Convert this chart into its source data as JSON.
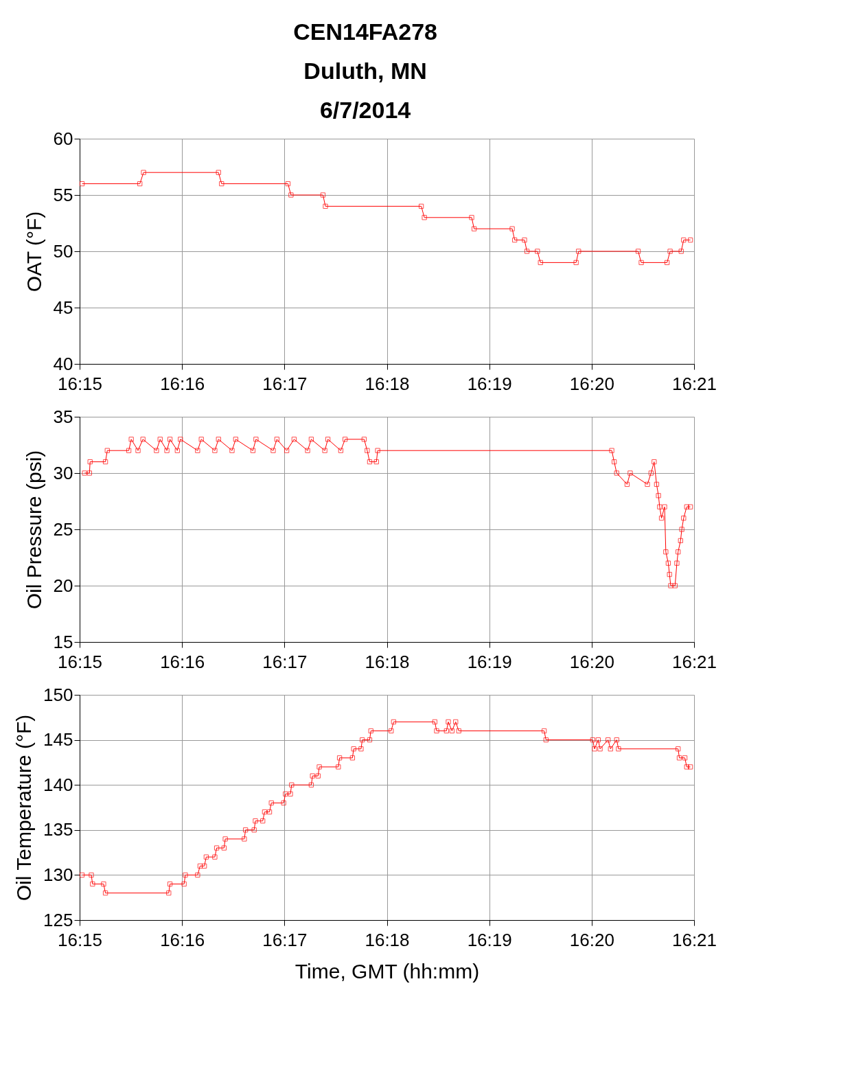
{
  "chart_data": [
    {
      "type": "line",
      "title": "CEN14FA278\nDuluth, MN\n6/7/2014",
      "ylabel": "OAT (°F)",
      "xlim": [
        16.25,
        16.35
      ],
      "xticks": [
        {
          "value": 16.25,
          "label": "16:15"
        },
        {
          "value": 16.266667,
          "label": "16:16"
        },
        {
          "value": 16.283333,
          "label": "16:17"
        },
        {
          "value": 16.3,
          "label": "16:18"
        },
        {
          "value": 16.316667,
          "label": "16:19"
        },
        {
          "value": 16.333333,
          "label": "16:20"
        },
        {
          "value": 16.35,
          "label": "16:21"
        }
      ],
      "ylim": [
        40,
        60
      ],
      "yticks": [
        40,
        45,
        50,
        55,
        60
      ],
      "grid": true,
      "marker": "square",
      "line_style": "solid",
      "series": [
        {
          "color": "#ff0000",
          "x": [
            16.2504,
            16.2598,
            16.2604,
            16.2726,
            16.2731,
            16.2839,
            16.2844,
            16.2896,
            16.29,
            16.3056,
            16.3061,
            16.3138,
            16.3142,
            16.3204,
            16.3208,
            16.3224,
            16.3228,
            16.3245,
            16.325,
            16.3308,
            16.3312,
            16.3409,
            16.3414,
            16.3456,
            16.3461,
            16.3479,
            16.3483,
            16.3494
          ],
          "values": [
            56,
            56,
            57,
            57,
            56,
            56,
            55,
            55,
            54,
            54,
            53,
            53,
            52,
            52,
            51,
            51,
            50,
            50,
            49,
            49,
            50,
            50,
            49,
            49,
            50,
            50,
            51,
            51
          ]
        }
      ]
    },
    {
      "type": "line",
      "ylabel": "Oil Pressure (psi)",
      "xlim": [
        16.25,
        16.35
      ],
      "xticks": [
        {
          "value": 16.25,
          "label": "16:15"
        },
        {
          "value": 16.266667,
          "label": "16:16"
        },
        {
          "value": 16.283333,
          "label": "16:17"
        },
        {
          "value": 16.3,
          "label": "16:18"
        },
        {
          "value": 16.316667,
          "label": "16:19"
        },
        {
          "value": 16.333333,
          "label": "16:20"
        },
        {
          "value": 16.35,
          "label": "16:21"
        }
      ],
      "ylim": [
        15,
        35
      ],
      "yticks": [
        15,
        20,
        25,
        30,
        35
      ],
      "grid": true,
      "marker": "square",
      "line_style": "solid",
      "series": [
        {
          "color": "#ff0000",
          "x": [
            16.2508,
            16.2516,
            16.2517,
            16.2542,
            16.2545,
            16.258,
            16.2584,
            16.2595,
            16.2603,
            16.2625,
            16.2631,
            16.2642,
            16.2647,
            16.2659,
            16.2664,
            16.2692,
            16.2698,
            16.272,
            16.2726,
            16.2748,
            16.2754,
            16.2782,
            16.2787,
            16.2815,
            16.2821,
            16.2837,
            16.2849,
            16.2871,
            16.2877,
            16.2899,
            16.2904,
            16.2925,
            16.2932,
            16.2963,
            16.2968,
            16.2972,
            16.2983,
            16.2985,
            16.3366,
            16.337,
            16.3374,
            16.3391,
            16.3396,
            16.3424,
            16.343,
            16.3435,
            16.3439,
            16.3442,
            16.3444,
            16.3447,
            16.3452,
            16.3454,
            16.3458,
            16.346,
            16.3462,
            16.3469,
            16.3472,
            16.3474,
            16.3478,
            16.348,
            16.3483,
            16.3488,
            16.3494
          ],
          "values": [
            30,
            30,
            31,
            31,
            32,
            32,
            33,
            32,
            33,
            32,
            33,
            32,
            33,
            32,
            33,
            32,
            33,
            32,
            33,
            32,
            33,
            32,
            33,
            32,
            33,
            32,
            33,
            32,
            33,
            32,
            33,
            32,
            33,
            33,
            32,
            31,
            31,
            32,
            32,
            31,
            30,
            29,
            30,
            29,
            30,
            31,
            29,
            28,
            27,
            26,
            27,
            23,
            22,
            21,
            20,
            20,
            22,
            23,
            24,
            25,
            26,
            27,
            27
          ]
        }
      ]
    },
    {
      "type": "line",
      "ylabel": "Oil Temperature (°F)",
      "xlabel": "Time, GMT (hh:mm)",
      "xlim": [
        16.25,
        16.35
      ],
      "xticks": [
        {
          "value": 16.25,
          "label": "16:15"
        },
        {
          "value": 16.266667,
          "label": "16:16"
        },
        {
          "value": 16.283333,
          "label": "16:17"
        },
        {
          "value": 16.3,
          "label": "16:18"
        },
        {
          "value": 16.316667,
          "label": "16:19"
        },
        {
          "value": 16.333333,
          "label": "16:20"
        },
        {
          "value": 16.35,
          "label": "16:21"
        }
      ],
      "ylim": [
        125,
        150
      ],
      "yticks": [
        125,
        130,
        135,
        140,
        145,
        150
      ],
      "grid": true,
      "marker": "square",
      "line_style": "solid",
      "series": [
        {
          "color": "#ff0000",
          "x": [
            16.2504,
            16.2519,
            16.2521,
            16.2539,
            16.2542,
            16.2645,
            16.2647,
            16.267,
            16.2672,
            16.2692,
            16.2696,
            16.2703,
            16.2706,
            16.272,
            16.2723,
            16.2735,
            16.2737,
            16.2768,
            16.277,
            16.2784,
            16.2786,
            16.2798,
            16.2801,
            16.2809,
            16.2812,
            16.2832,
            16.2835,
            16.2843,
            16.2845,
            16.2877,
            16.2879,
            16.2888,
            16.289,
            16.2921,
            16.2923,
            16.2944,
            16.2946,
            16.2958,
            16.296,
            16.2972,
            16.2974,
            16.3007,
            16.3011,
            16.3078,
            16.3081,
            16.3097,
            16.31,
            16.3106,
            16.3112,
            16.3117,
            16.3256,
            16.3259,
            16.3335,
            16.3338,
            16.3344,
            16.3347,
            16.336,
            16.3364,
            16.3374,
            16.3377,
            16.3474,
            16.3476,
            16.3485,
            16.3488,
            16.3494
          ],
          "values": [
            130,
            130,
            129,
            129,
            128,
            128,
            129,
            129,
            130,
            130,
            131,
            131,
            132,
            132,
            133,
            133,
            134,
            134,
            135,
            135,
            136,
            136,
            137,
            137,
            138,
            138,
            139,
            139,
            140,
            140,
            141,
            141,
            142,
            142,
            143,
            143,
            144,
            144,
            145,
            145,
            146,
            146,
            147,
            147,
            146,
            146,
            147,
            146,
            147,
            146,
            146,
            145,
            145,
            144,
            145,
            144,
            145,
            144,
            145,
            144,
            144,
            143,
            143,
            142,
            142
          ]
        }
      ]
    }
  ]
}
